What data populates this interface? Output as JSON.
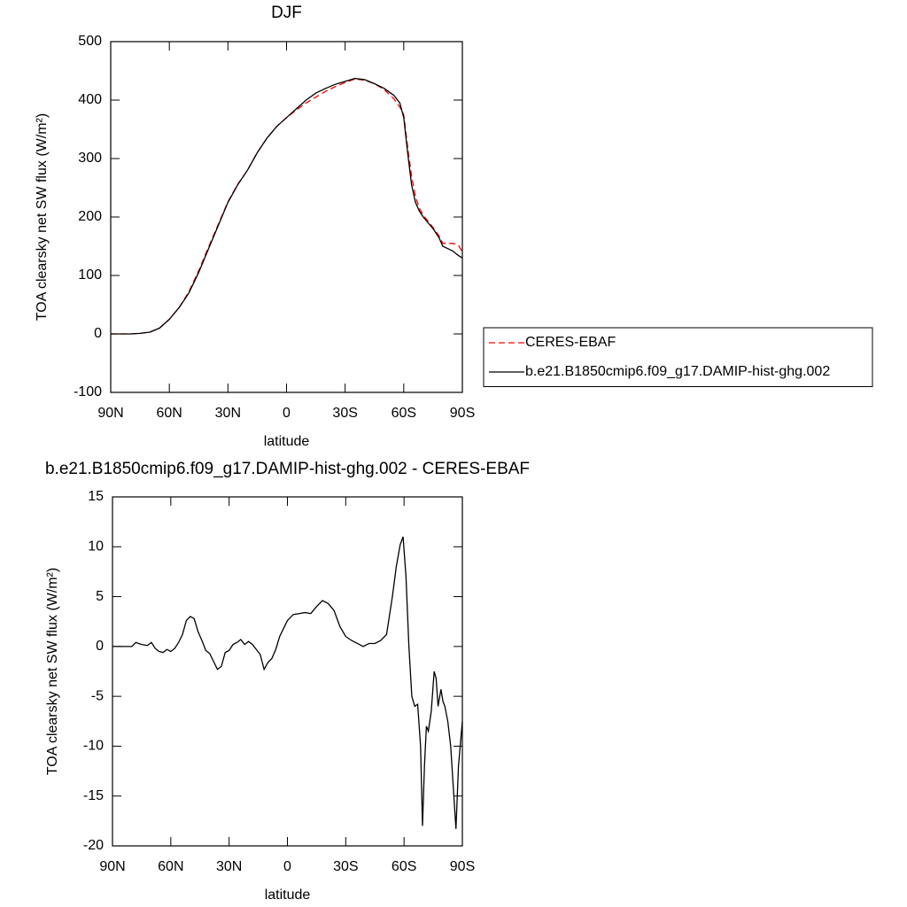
{
  "chart_data": [
    {
      "type": "line",
      "title": "DJF",
      "xlabel": "latitude",
      "ylabel": "TOA clearsky net SW flux (W/m²)",
      "x": [
        90,
        85,
        80,
        75,
        70,
        65,
        60,
        55,
        50,
        45,
        40,
        35,
        30,
        25,
        20,
        15,
        10,
        5,
        0,
        -5,
        -10,
        -15,
        -20,
        -25,
        -30,
        -35,
        -40,
        -45,
        -50,
        -55,
        -58,
        -60,
        -62,
        -64,
        -66,
        -68,
        -70,
        -75,
        -78,
        -80,
        -85,
        -88,
        -90
      ],
      "series": [
        {
          "name": "CERES-EBAF",
          "color": "#ff0000",
          "line_style": "dashed",
          "values": [
            0,
            0,
            0,
            1,
            3,
            10,
            25,
            45,
            72,
            108,
            148,
            187,
            226,
            256,
            280,
            310,
            335,
            355,
            370,
            383,
            395,
            405,
            415,
            423,
            430,
            436,
            434,
            428,
            418,
            402,
            388,
            375,
            320,
            270,
            235,
            215,
            203,
            182,
            168,
            155,
            155,
            152,
            140
          ]
        },
        {
          "name": "b.e21.B1850cmip6.f09_g17.DAMIP-hist-ghg.002",
          "color": "#000000",
          "line_style": "solid",
          "values": [
            0,
            0,
            0,
            1,
            3,
            10,
            25,
            45,
            70,
            105,
            145,
            185,
            225,
            255,
            280,
            310,
            335,
            355,
            370,
            385,
            400,
            412,
            420,
            427,
            432,
            437,
            435,
            428,
            420,
            408,
            395,
            370,
            310,
            255,
            225,
            210,
            200,
            180,
            165,
            150,
            142,
            134,
            130
          ]
        }
      ],
      "xlim": [
        90,
        -90
      ],
      "xticks": [
        {
          "value": 90,
          "label": "90N"
        },
        {
          "value": 60,
          "label": "60N"
        },
        {
          "value": 30,
          "label": "30N"
        },
        0,
        {
          "value": -30,
          "label": "30S"
        },
        {
          "value": -60,
          "label": "60S"
        },
        {
          "value": -90,
          "label": "90S"
        }
      ],
      "ylim": [
        -100,
        500
      ],
      "yticks": [
        -100,
        0,
        100,
        200,
        300,
        400,
        500
      ],
      "legend": "right"
    },
    {
      "type": "line",
      "title": "b.e21.B1850cmip6.f09_g17.DAMIP-hist-ghg.002 - CERES-EBAF",
      "xlabel": "latitude",
      "ylabel": "TOA clearsky net SW flux (W/m²)",
      "x": [
        90,
        80,
        78,
        75,
        72,
        70,
        68,
        66,
        64,
        62,
        60,
        58,
        56,
        54,
        52,
        50,
        48,
        46,
        44,
        42,
        40,
        38,
        36,
        34,
        32,
        30,
        28,
        26,
        24,
        22,
        20,
        18,
        16,
        14,
        12,
        10,
        8,
        6,
        4,
        2,
        0,
        -3,
        -6,
        -9,
        -12,
        -15,
        -18,
        -21,
        -24,
        -27,
        -30,
        -33,
        -36,
        -39,
        -42,
        -45,
        -48,
        -51,
        -54,
        -56,
        -58,
        -59.5,
        -61,
        -62.5,
        -64,
        -65.5,
        -67,
        -68.5,
        -69.5,
        -70.5,
        -71.5,
        -72.5,
        -74,
        -75.5,
        -76.5,
        -77.5,
        -79,
        -80,
        -81,
        -82.5,
        -84,
        -86.7,
        -88,
        -90
      ],
      "values": [
        0,
        0,
        0.4,
        0.2,
        0.1,
        0.4,
        -0.2,
        -0.5,
        -0.6,
        -0.3,
        -0.5,
        -0.2,
        0.4,
        1.2,
        2.6,
        3.0,
        2.8,
        1.5,
        0.6,
        -0.4,
        -0.7,
        -1.5,
        -2.3,
        -2.0,
        -0.6,
        -0.4,
        0.2,
        0.4,
        0.7,
        0.2,
        0.5,
        0.2,
        -0.3,
        -0.8,
        -2.3,
        -1.6,
        -1.2,
        -0.3,
        1.0,
        1.8,
        2.6,
        3.2,
        3.3,
        3.4,
        3.3,
        4.0,
        4.6,
        4.3,
        3.6,
        2.0,
        1.0,
        0.6,
        0.3,
        0.0,
        0.3,
        0.3,
        0.6,
        1.2,
        5.0,
        8.0,
        10.2,
        11.0,
        7.0,
        0.0,
        -5.0,
        -6.0,
        -5.8,
        -10.0,
        -18.0,
        -12.0,
        -8.0,
        -8.5,
        -6.5,
        -2.5,
        -3.2,
        -6.0,
        -4.3,
        -5.5,
        -6.0,
        -7.5,
        -10.0,
        -18.3,
        -12.0,
        -7.5
      ],
      "color": "#000000",
      "xlim": [
        90,
        -90
      ],
      "xticks": [
        {
          "value": 90,
          "label": "90N"
        },
        {
          "value": 60,
          "label": "60N"
        },
        {
          "value": 30,
          "label": "30N"
        },
        0,
        {
          "value": -30,
          "label": "30S"
        },
        {
          "value": -60,
          "label": "60S"
        },
        {
          "value": -90,
          "label": "90S"
        }
      ],
      "ylim": [
        -20,
        15
      ],
      "yticks": [
        -20,
        -15,
        -10,
        -5,
        0,
        5,
        10,
        15
      ]
    }
  ]
}
